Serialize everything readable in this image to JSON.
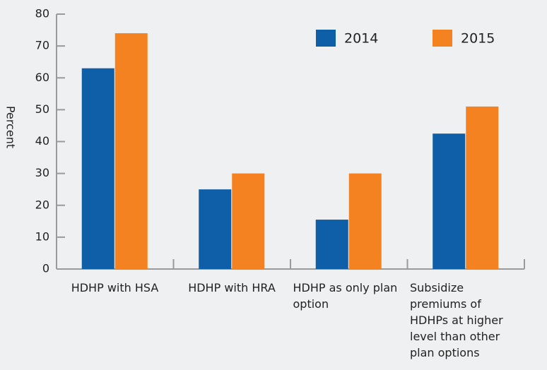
{
  "chart_data": {
    "type": "bar",
    "y_label": "Percent",
    "categories": [
      "HDHP with HSA",
      "HDHP with HRA",
      "HDHP as only plan option",
      "Subsidize premiums of HDHPs at higher level than other plan options"
    ],
    "series": [
      {
        "name": "2014",
        "color": "#0f5ea8",
        "values": [
          63,
          25,
          15.5,
          42.5
        ]
      },
      {
        "name": "2015",
        "color": "#f58220",
        "values": [
          74,
          30,
          30,
          51
        ]
      }
    ],
    "ylim": [
      0,
      80
    ],
    "yticks": [
      0,
      10,
      20,
      30,
      40,
      50,
      60,
      70,
      80
    ],
    "legend": "top-right"
  }
}
